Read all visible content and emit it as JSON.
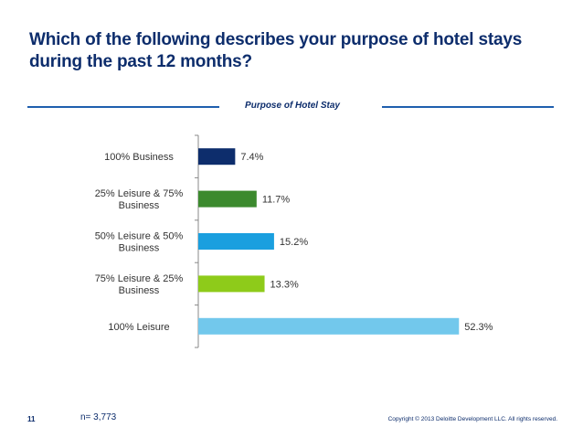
{
  "slide": {
    "title": "Which of the following describes your purpose of hotel stays during the past 12 months?",
    "page_number": "11",
    "sample_size": "n= 3,773",
    "copyright": "Copyright © 2013 Deloitte Development LLC. All rights reserved."
  },
  "chart_data": {
    "type": "bar",
    "orientation": "horizontal",
    "title": "Purpose of Hotel Stay",
    "categories": [
      [
        "100% Business"
      ],
      [
        "25% Leisure & 75%",
        "Business"
      ],
      [
        "50% Leisure & 50%",
        "Business"
      ],
      [
        "75% Leisure & 25%",
        "Business"
      ],
      [
        "100% Leisure"
      ]
    ],
    "values": [
      7.4,
      11.7,
      15.2,
      13.3,
      52.3
    ],
    "value_labels": [
      "7.4%",
      "11.7%",
      "15.2%",
      "13.3%",
      "52.3%"
    ],
    "colors": [
      "#0d2d6c",
      "#3c8a2e",
      "#1a9fdf",
      "#8ecb1a",
      "#72c8ec"
    ],
    "xlim": [
      0,
      55
    ],
    "grid": false,
    "legend": "none"
  },
  "colors": {
    "title": "#0d2d6c",
    "rule": "#1f5fae",
    "axis": "#888888",
    "label": "#333333"
  }
}
